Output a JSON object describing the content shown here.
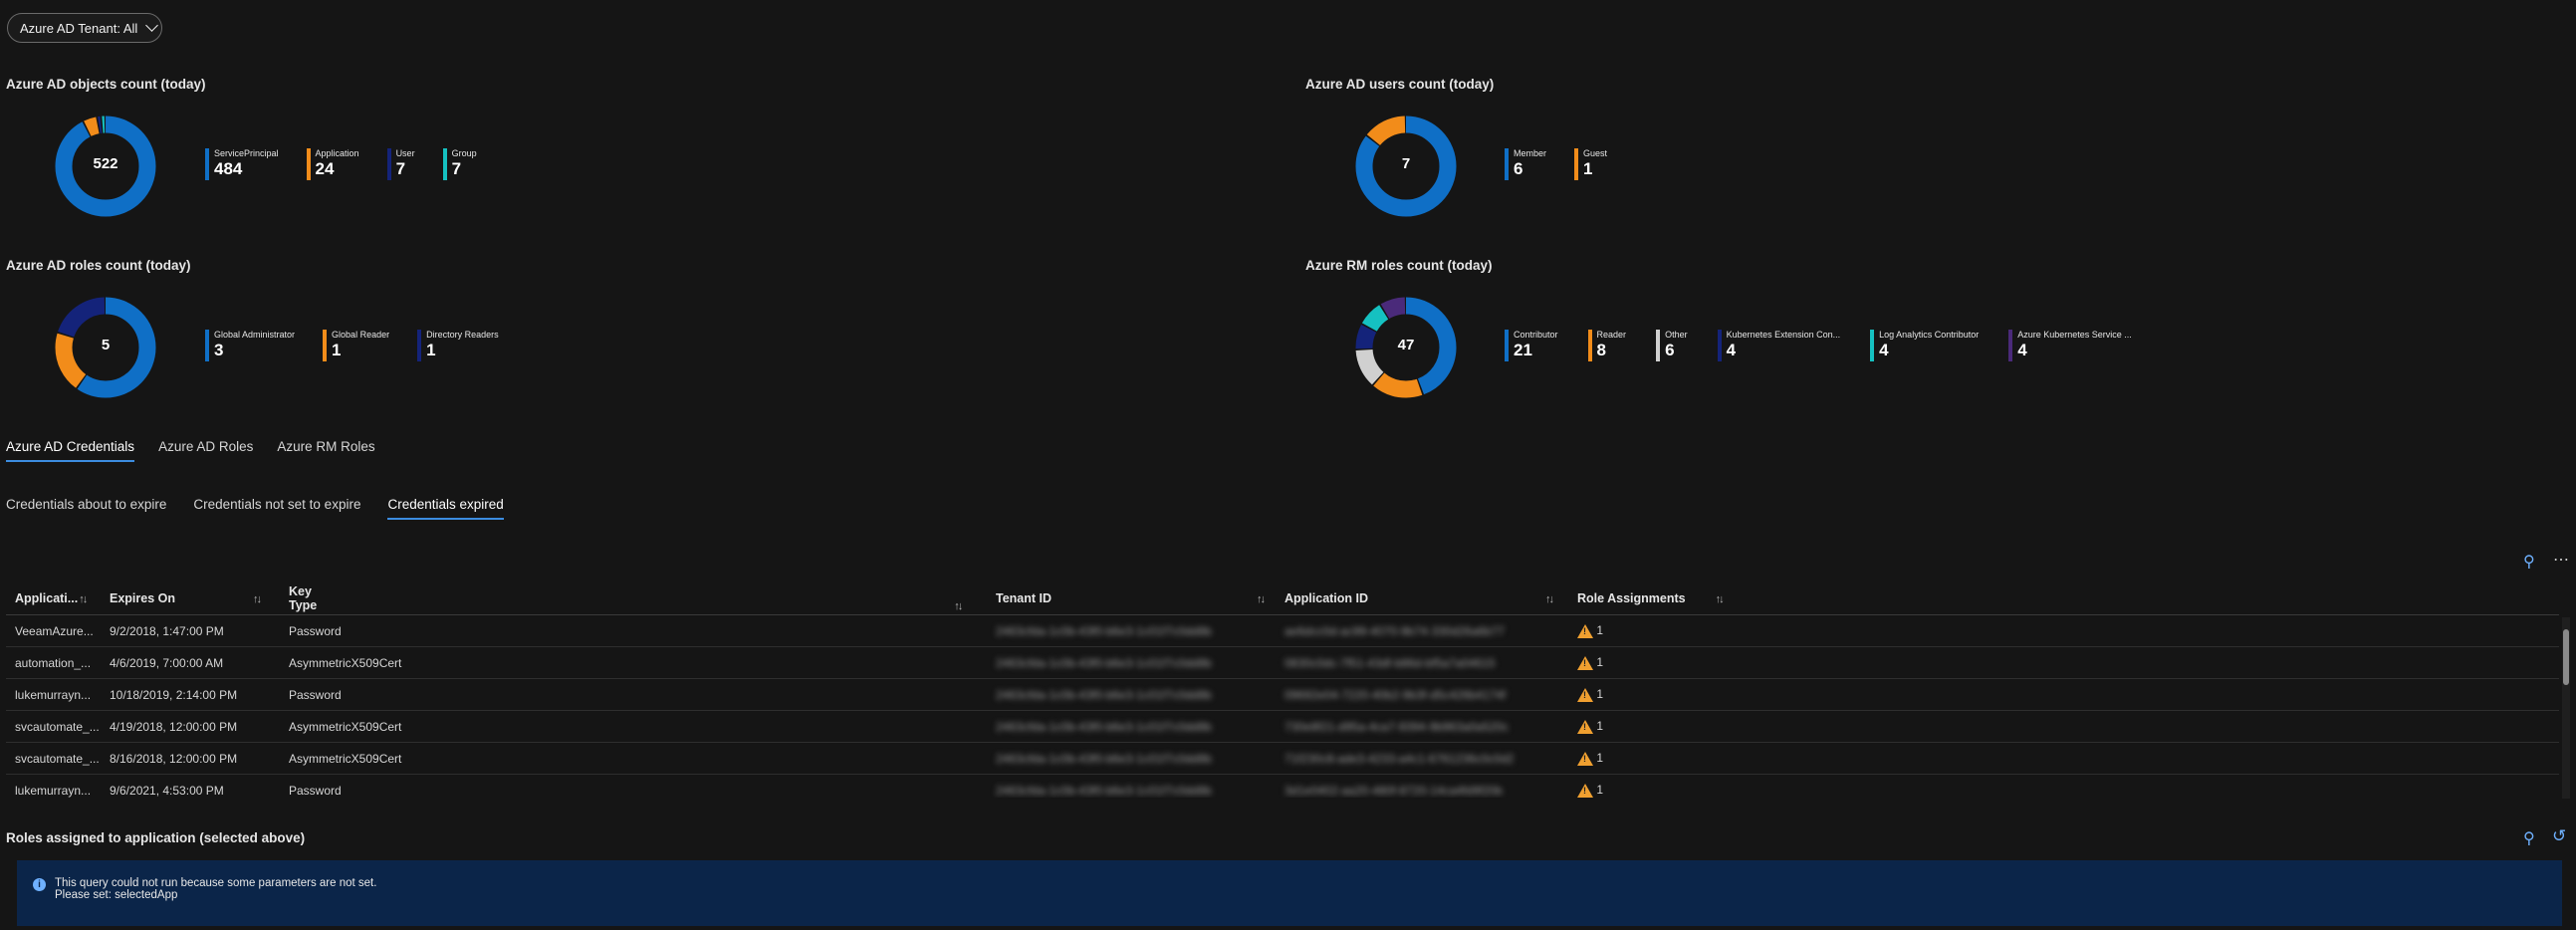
{
  "filter": {
    "label": "Azure AD Tenant: All"
  },
  "panels": {
    "objects": {
      "title": "Azure AD objects count (today)",
      "total": "522",
      "items": [
        {
          "label": "ServicePrincipal",
          "value": "484",
          "color": "#0f6fc6",
          "n": 484
        },
        {
          "label": "Application",
          "value": "24",
          "color": "#f28c1a",
          "n": 24
        },
        {
          "label": "User",
          "value": "7",
          "color": "#14237a",
          "n": 7
        },
        {
          "label": "Group",
          "value": "7",
          "color": "#15c1c1",
          "n": 7
        }
      ]
    },
    "users": {
      "title": "Azure AD users count (today)",
      "total": "7",
      "items": [
        {
          "label": "Member",
          "value": "6",
          "color": "#0f6fc6",
          "n": 6
        },
        {
          "label": "Guest",
          "value": "1",
          "color": "#f28c1a",
          "n": 1
        }
      ]
    },
    "ad_roles": {
      "title": "Azure AD roles count (today)",
      "total": "5",
      "items": [
        {
          "label": "Global Administrator",
          "value": "3",
          "color": "#0f6fc6",
          "n": 3
        },
        {
          "label": "Global Reader",
          "value": "1",
          "color": "#f28c1a",
          "n": 1
        },
        {
          "label": "Directory Readers",
          "value": "1",
          "color": "#14237a",
          "n": 1
        }
      ]
    },
    "rm_roles": {
      "title": "Azure RM roles count (today)",
      "total": "47",
      "items": [
        {
          "label": "Contributor",
          "value": "21",
          "color": "#0f6fc6",
          "n": 21
        },
        {
          "label": "Reader",
          "value": "8",
          "color": "#f28c1a",
          "n": 8
        },
        {
          "label": "Other",
          "value": "6",
          "color": "#d0d0d0",
          "n": 6
        },
        {
          "label": "Kubernetes Extension Con...",
          "value": "4",
          "color": "#14237a",
          "n": 4
        },
        {
          "label": "Log Analytics Contributor",
          "value": "4",
          "color": "#15c1c1",
          "n": 4
        },
        {
          "label": "Azure Kubernetes Service ...",
          "value": "4",
          "color": "#4a2a7a",
          "n": 4
        }
      ]
    }
  },
  "main_tabs": [
    "Azure AD Credentials",
    "Azure AD Roles",
    "Azure RM Roles"
  ],
  "sub_tabs": [
    "Credentials about to expire",
    "Credentials not set to expire",
    "Credentials expired"
  ],
  "table": {
    "columns": [
      "Applicati...",
      "Expires On",
      "Key Type",
      "Tenant ID",
      "Application ID",
      "Role Assignments"
    ],
    "rows": [
      {
        "app": "VeeamAzure...",
        "expires": "9/2/2018, 1:47:00 PM",
        "key": "Password",
        "tenant": "2463cfda-1c0b-43f0-b6e3-1c01f7c0dd8b",
        "appid": "ae6dcc0d-ac99-4070-9b74-330d26a6b77",
        "roles": "1"
      },
      {
        "app": "automation_...",
        "expires": "4/6/2019, 7:00:00 AM",
        "key": "AsymmetricX509Cert",
        "tenant": "2463cfda-1c0b-43f0-b6e3-1c01f7c0dd8b",
        "appid": "0830c0dc-7f51-43df-b86d-bf5a7a04615",
        "roles": "1"
      },
      {
        "app": "lukemurrayn...",
        "expires": "10/18/2019, 2:14:00 PM",
        "key": "Password",
        "tenant": "2463cfda-1c0b-43f0-b6e3-1c01f7c0dd8b",
        "appid": "09692e04-7220-40b2-9b3f-d5c426b4174f",
        "roles": "1"
      },
      {
        "app": "svcautomate_...",
        "expires": "4/19/2018, 12:00:00 PM",
        "key": "AsymmetricX509Cert",
        "tenant": "2463cfda-1c0b-43f0-b6e3-1c01f7c0dd8b",
        "appid": "730e8f21-d95a-4ca7-9394-9b963a0a520c",
        "roles": "1"
      },
      {
        "app": "svcautomate_...",
        "expires": "8/16/2018, 12:00:00 PM",
        "key": "AsymmetricX509Cert",
        "tenant": "2463cfda-1c0b-43f0-b6e3-1c01f7c0dd8b",
        "appid": "71f230c8-ade3-4233-a4c1-6761236c0c0d2",
        "roles": "1"
      },
      {
        "app": "lukemurrayn...",
        "expires": "9/6/2021, 4:53:00 PM",
        "key": "Password",
        "tenant": "2463cfda-1c0b-43f0-b6e3-1c01f7c0dd8b",
        "appid": "3d1e0402-aa20-480f-8720-14ca4fd9f20b",
        "roles": "1"
      }
    ]
  },
  "roles_section": {
    "title": "Roles assigned to application (selected above)",
    "message_line1": "This query could not run because some parameters are not set.",
    "message_line2": "Please set: selectedApp"
  }
}
